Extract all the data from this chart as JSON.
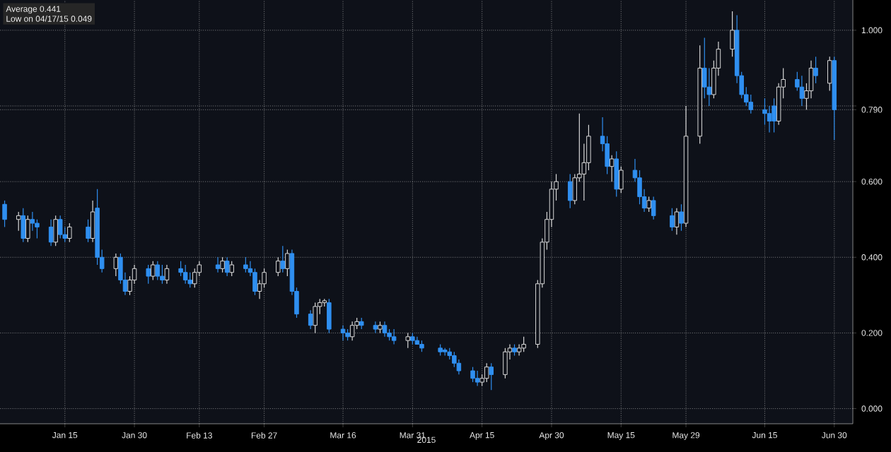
{
  "chart_data": {
    "type": "candlestick",
    "xlabel": "2015",
    "annotations": [
      "Average 0.441",
      "Low on 04/17/15 0.049"
    ],
    "xlim": [
      "2015-01-01",
      "2015-07-04"
    ],
    "ylim": [
      -0.04,
      1.08
    ],
    "xticks": [
      {
        "value": "2015-01-15",
        "label": "Jan 15"
      },
      {
        "value": "2015-01-30",
        "label": "Jan 30"
      },
      {
        "value": "2015-02-13",
        "label": "Feb 13"
      },
      {
        "value": "2015-02-27",
        "label": "Feb 27"
      },
      {
        "value": "2015-03-16",
        "label": "Mar 16"
      },
      {
        "value": "2015-03-31",
        "label": "Mar 31"
      },
      {
        "value": "2015-04-15",
        "label": "Apr 15"
      },
      {
        "value": "2015-04-30",
        "label": "Apr 30"
      },
      {
        "value": "2015-05-15",
        "label": "May 15"
      },
      {
        "value": "2015-05-29",
        "label": "May 29"
      },
      {
        "value": "2015-06-15",
        "label": "Jun 15"
      },
      {
        "value": "2015-06-30",
        "label": "Jun 30"
      }
    ],
    "yticks": [
      {
        "value": 0,
        "label": "0.000"
      },
      {
        "value": 0.2,
        "label": "0.200"
      },
      {
        "value": 0.4,
        "label": "0.400"
      },
      {
        "value": 0.6,
        "label": "0.600"
      },
      {
        "value": 0.79,
        "label": "0.790"
      },
      {
        "value": 0.8,
        "label": null
      },
      {
        "value": 1.0,
        "label": "1.000"
      }
    ],
    "grid": true,
    "series": [
      {
        "color": "#d9d9d9",
        "x": [
          "2015-01-05",
          "2015-01-07",
          "2015-01-13",
          "2015-01-16",
          "2015-01-21",
          "2015-01-26",
          "2015-01-29",
          "2015-01-30",
          "2015-02-03",
          "2015-02-06",
          "2015-02-12",
          "2015-02-13",
          "2015-02-18",
          "2015-02-20",
          "2015-02-26",
          "2015-02-27",
          "2015-03-02",
          "2015-03-04",
          "2015-03-10",
          "2015-03-11",
          "2015-03-12",
          "2015-03-18",
          "2015-03-19",
          "2015-03-24",
          "2015-03-30",
          "2015-04-15",
          "2015-04-16",
          "2015-04-20",
          "2015-04-21",
          "2015-04-23",
          "2015-04-24",
          "2015-04-27",
          "2015-04-28",
          "2015-04-29",
          "2015-04-30",
          "2015-05-01",
          "2015-05-05",
          "2015-05-06",
          "2015-05-07",
          "2015-05-08",
          "2015-05-13",
          "2015-05-15",
          "2015-05-21",
          "2015-05-27",
          "2015-05-29",
          "2015-06-01",
          "2015-06-04",
          "2015-06-05",
          "2015-06-08",
          "2015-06-18",
          "2015-06-19",
          "2015-06-24",
          "2015-06-25",
          "2015-06-29"
        ],
        "ohlc": [
          [
            0.5,
            0.52,
            0.47,
            0.51
          ],
          [
            0.45,
            0.51,
            0.44,
            0.5
          ],
          [
            0.44,
            0.51,
            0.43,
            0.5
          ],
          [
            0.45,
            0.49,
            0.44,
            0.48
          ],
          [
            0.45,
            0.55,
            0.44,
            0.52
          ],
          [
            0.37,
            0.41,
            0.35,
            0.4
          ],
          [
            0.31,
            0.35,
            0.3,
            0.34
          ],
          [
            0.34,
            0.38,
            0.33,
            0.37
          ],
          [
            0.35,
            0.39,
            0.34,
            0.38
          ],
          [
            0.34,
            0.38,
            0.33,
            0.37
          ],
          [
            0.33,
            0.37,
            0.32,
            0.36
          ],
          [
            0.36,
            0.39,
            0.35,
            0.38
          ],
          [
            0.37,
            0.4,
            0.36,
            0.39
          ],
          [
            0.36,
            0.39,
            0.35,
            0.38
          ],
          [
            0.31,
            0.34,
            0.29,
            0.33
          ],
          [
            0.33,
            0.37,
            0.32,
            0.36
          ],
          [
            0.36,
            0.4,
            0.35,
            0.39
          ],
          [
            0.37,
            0.42,
            0.35,
            0.41
          ],
          [
            0.22,
            0.28,
            0.2,
            0.27
          ],
          [
            0.27,
            0.29,
            0.25,
            0.28
          ],
          [
            0.28,
            0.29,
            0.27,
            0.285
          ],
          [
            0.19,
            0.23,
            0.18,
            0.22
          ],
          [
            0.22,
            0.24,
            0.21,
            0.23
          ],
          [
            0.21,
            0.23,
            0.2,
            0.22
          ],
          [
            0.18,
            0.2,
            0.16,
            0.19
          ],
          [
            0.07,
            0.09,
            0.06,
            0.08
          ],
          [
            0.08,
            0.12,
            0.07,
            0.11
          ],
          [
            0.09,
            0.16,
            0.08,
            0.15
          ],
          [
            0.15,
            0.17,
            0.13,
            0.16
          ],
          [
            0.15,
            0.17,
            0.14,
            0.16
          ],
          [
            0.16,
            0.19,
            0.15,
            0.17
          ],
          [
            0.17,
            0.34,
            0.16,
            0.33
          ],
          [
            0.33,
            0.45,
            0.32,
            0.44
          ],
          [
            0.44,
            0.52,
            0.42,
            0.5
          ],
          [
            0.5,
            0.6,
            0.48,
            0.58
          ],
          [
            0.58,
            0.62,
            0.55,
            0.6
          ],
          [
            0.55,
            0.62,
            0.54,
            0.61
          ],
          [
            0.61,
            0.78,
            0.6,
            0.62
          ],
          [
            0.62,
            0.7,
            0.55,
            0.65
          ],
          [
            0.65,
            0.75,
            0.63,
            0.72
          ],
          [
            0.64,
            0.67,
            0.6,
            0.66
          ],
          [
            0.58,
            0.64,
            0.57,
            0.63
          ],
          [
            0.53,
            0.56,
            0.52,
            0.55
          ],
          [
            0.48,
            0.53,
            0.46,
            0.52
          ],
          [
            0.49,
            0.8,
            0.48,
            0.72
          ],
          [
            0.72,
            0.96,
            0.7,
            0.9
          ],
          [
            0.83,
            0.92,
            0.82,
            0.9
          ],
          [
            0.9,
            0.97,
            0.88,
            0.95
          ],
          [
            0.95,
            1.05,
            0.93,
            1.0
          ],
          [
            0.76,
            0.86,
            0.75,
            0.85
          ],
          [
            0.85,
            0.9,
            0.82,
            0.87
          ],
          [
            0.82,
            0.86,
            0.79,
            0.84
          ],
          [
            0.84,
            0.92,
            0.82,
            0.9
          ],
          [
            0.86,
            0.93,
            0.84,
            0.92
          ]
        ]
      },
      {
        "color": "#2f8ff0",
        "x": [
          "2015-01-02",
          "2015-01-06",
          "2015-01-08",
          "2015-01-09",
          "2015-01-12",
          "2015-01-14",
          "2015-01-15",
          "2015-01-20",
          "2015-01-22",
          "2015-01-23",
          "2015-01-27",
          "2015-01-28",
          "2015-02-02",
          "2015-02-04",
          "2015-02-05",
          "2015-02-09",
          "2015-02-10",
          "2015-02-11",
          "2015-02-17",
          "2015-02-19",
          "2015-02-23",
          "2015-02-24",
          "2015-02-25",
          "2015-03-03",
          "2015-03-05",
          "2015-03-06",
          "2015-03-09",
          "2015-03-13",
          "2015-03-16",
          "2015-03-17",
          "2015-03-20",
          "2015-03-23",
          "2015-03-25",
          "2015-03-26",
          "2015-03-27",
          "2015-03-31",
          "2015-04-01",
          "2015-04-02",
          "2015-04-06",
          "2015-04-07",
          "2015-04-08",
          "2015-04-09",
          "2015-04-10",
          "2015-04-13",
          "2015-04-14",
          "2015-04-17",
          "2015-04-22",
          "2015-05-04",
          "2015-05-11",
          "2015-05-12",
          "2015-05-14",
          "2015-05-18",
          "2015-05-19",
          "2015-05-20",
          "2015-05-22",
          "2015-05-26",
          "2015-05-28",
          "2015-06-02",
          "2015-06-03",
          "2015-06-09",
          "2015-06-10",
          "2015-06-11",
          "2015-06-12",
          "2015-06-15",
          "2015-06-16",
          "2015-06-17",
          "2015-06-22",
          "2015-06-23",
          "2015-06-26",
          "2015-06-30"
        ],
        "ohlc": [
          [
            0.54,
            0.55,
            0.48,
            0.5
          ],
          [
            0.51,
            0.53,
            0.44,
            0.45
          ],
          [
            0.5,
            0.52,
            0.47,
            0.49
          ],
          [
            0.49,
            0.5,
            0.45,
            0.48
          ],
          [
            0.48,
            0.5,
            0.43,
            0.44
          ],
          [
            0.5,
            0.51,
            0.45,
            0.46
          ],
          [
            0.46,
            0.48,
            0.44,
            0.45
          ],
          [
            0.48,
            0.5,
            0.44,
            0.45
          ],
          [
            0.53,
            0.58,
            0.38,
            0.4
          ],
          [
            0.4,
            0.42,
            0.36,
            0.37
          ],
          [
            0.4,
            0.41,
            0.33,
            0.34
          ],
          [
            0.34,
            0.36,
            0.3,
            0.31
          ],
          [
            0.37,
            0.38,
            0.33,
            0.35
          ],
          [
            0.38,
            0.39,
            0.34,
            0.35
          ],
          [
            0.35,
            0.38,
            0.33,
            0.34
          ],
          [
            0.37,
            0.39,
            0.35,
            0.36
          ],
          [
            0.36,
            0.38,
            0.33,
            0.34
          ],
          [
            0.34,
            0.36,
            0.32,
            0.33
          ],
          [
            0.38,
            0.4,
            0.36,
            0.37
          ],
          [
            0.39,
            0.4,
            0.35,
            0.36
          ],
          [
            0.38,
            0.4,
            0.36,
            0.37
          ],
          [
            0.37,
            0.39,
            0.35,
            0.36
          ],
          [
            0.36,
            0.37,
            0.3,
            0.31
          ],
          [
            0.39,
            0.43,
            0.36,
            0.37
          ],
          [
            0.41,
            0.42,
            0.3,
            0.31
          ],
          [
            0.31,
            0.32,
            0.24,
            0.25
          ],
          [
            0.25,
            0.26,
            0.21,
            0.22
          ],
          [
            0.28,
            0.29,
            0.2,
            0.21
          ],
          [
            0.21,
            0.22,
            0.18,
            0.2
          ],
          [
            0.2,
            0.21,
            0.18,
            0.19
          ],
          [
            0.23,
            0.24,
            0.21,
            0.22
          ],
          [
            0.22,
            0.23,
            0.2,
            0.21
          ],
          [
            0.22,
            0.23,
            0.19,
            0.2
          ],
          [
            0.2,
            0.21,
            0.18,
            0.19
          ],
          [
            0.19,
            0.21,
            0.17,
            0.18
          ],
          [
            0.19,
            0.2,
            0.17,
            0.18
          ],
          [
            0.18,
            0.19,
            0.17,
            0.17
          ],
          [
            0.17,
            0.18,
            0.15,
            0.16
          ],
          [
            0.16,
            0.17,
            0.14,
            0.15
          ],
          [
            0.155,
            0.16,
            0.14,
            0.15
          ],
          [
            0.15,
            0.16,
            0.13,
            0.14
          ],
          [
            0.14,
            0.15,
            0.11,
            0.12
          ],
          [
            0.12,
            0.13,
            0.09,
            0.1
          ],
          [
            0.1,
            0.11,
            0.07,
            0.08
          ],
          [
            0.08,
            0.1,
            0.06,
            0.07
          ],
          [
            0.11,
            0.12,
            0.049,
            0.09
          ],
          [
            0.16,
            0.17,
            0.14,
            0.15
          ],
          [
            0.6,
            0.62,
            0.53,
            0.55
          ],
          [
            0.72,
            0.77,
            0.68,
            0.7
          ],
          [
            0.7,
            0.72,
            0.62,
            0.64
          ],
          [
            0.66,
            0.68,
            0.56,
            0.58
          ],
          [
            0.63,
            0.66,
            0.6,
            0.61
          ],
          [
            0.61,
            0.63,
            0.54,
            0.56
          ],
          [
            0.56,
            0.58,
            0.52,
            0.53
          ],
          [
            0.55,
            0.56,
            0.5,
            0.51
          ],
          [
            0.51,
            0.53,
            0.47,
            0.48
          ],
          [
            0.52,
            0.54,
            0.47,
            0.49
          ],
          [
            0.9,
            0.98,
            0.82,
            0.85
          ],
          [
            0.85,
            0.9,
            0.8,
            0.83
          ],
          [
            1.0,
            1.04,
            0.86,
            0.88
          ],
          [
            0.88,
            0.89,
            0.82,
            0.83
          ],
          [
            0.83,
            0.85,
            0.8,
            0.81
          ],
          [
            0.81,
            0.83,
            0.78,
            0.79
          ],
          [
            0.79,
            0.82,
            0.75,
            0.78
          ],
          [
            0.78,
            0.8,
            0.73,
            0.76
          ],
          [
            0.8,
            0.82,
            0.73,
            0.76
          ],
          [
            0.87,
            0.89,
            0.84,
            0.85
          ],
          [
            0.85,
            0.88,
            0.8,
            0.82
          ],
          [
            0.9,
            0.93,
            0.86,
            0.88
          ],
          [
            0.92,
            0.93,
            0.71,
            0.79
          ]
        ]
      }
    ]
  }
}
